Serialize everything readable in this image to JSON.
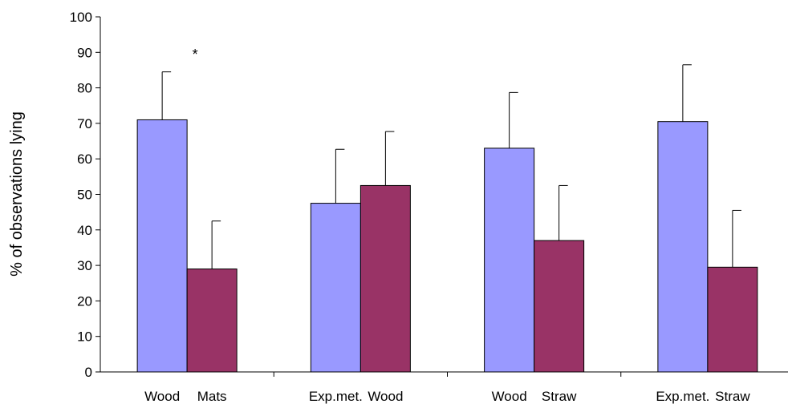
{
  "chart_data": {
    "type": "bar",
    "ylabel": "% of observations lying",
    "xlabel": "",
    "title": "",
    "ylim": [
      0,
      100
    ],
    "yticks": [
      0,
      10,
      20,
      30,
      40,
      50,
      60,
      70,
      80,
      90,
      100
    ],
    "grid": false,
    "legend": "none",
    "groups": [
      {
        "bars": [
          {
            "label": "Wood",
            "value": 71,
            "error": 13.5,
            "color": "#9999ff"
          },
          {
            "label": "Mats",
            "value": 29,
            "error": 13.5,
            "color": "#993366"
          }
        ],
        "annotation": "*"
      },
      {
        "bars": [
          {
            "label": "Exp.met.",
            "value": 47.5,
            "error": 15.2,
            "color": "#9999ff"
          },
          {
            "label": "Wood",
            "value": 52.5,
            "error": 15.2,
            "color": "#993366"
          }
        ],
        "annotation": ""
      },
      {
        "bars": [
          {
            "label": "Wood",
            "value": 63,
            "error": 15.7,
            "color": "#9999ff"
          },
          {
            "label": "Straw",
            "value": 37,
            "error": 15.5,
            "color": "#993366"
          }
        ],
        "annotation": ""
      },
      {
        "bars": [
          {
            "label": "Exp.met.",
            "value": 70.5,
            "error": 16,
            "color": "#9999ff"
          },
          {
            "label": "Straw",
            "value": 29.5,
            "error": 16,
            "color": "#993366"
          }
        ],
        "annotation": ""
      }
    ]
  }
}
